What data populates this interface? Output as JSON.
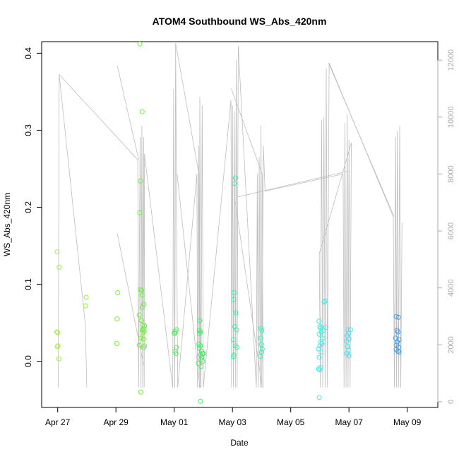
{
  "chart_data": {
    "type": "scatter",
    "title": "ATOM4 Southbound WS_Abs_420nm",
    "xlabel": "Date",
    "ylabel": "WS_Abs_420nm",
    "x_ticks": [
      "Apr 27",
      "Apr 29",
      "May 01",
      "May 03",
      "May 05",
      "May 07",
      "May 09"
    ],
    "x_tick_days": [
      0,
      2,
      4,
      6,
      8,
      10,
      12
    ],
    "xlim_days": [
      -0.55,
      13.05
    ],
    "ylim": [
      -0.06,
      0.415
    ],
    "y_ticks": [
      0.0,
      0.1,
      0.2,
      0.3,
      0.4
    ],
    "y_tick_labels": [
      "0.0",
      "0.1",
      "0.2",
      "0.3",
      "0.4"
    ],
    "secondary_ylim": [
      -200,
      12650
    ],
    "secondary_y_ticks": [
      0,
      2000,
      4000,
      6000,
      8000,
      10000,
      12000
    ],
    "secondary_y_tick_labels": [
      "0",
      "2000",
      "4000",
      "6000",
      "8000",
      "10000",
      "12000"
    ],
    "colors": {
      "axis": "#000000",
      "secondary_axis": "#a9a9a9",
      "trace": "#bdbdbd"
    },
    "series": [
      {
        "color": "#a0f03a",
        "points": [
          [
            -0.02,
            0.142
          ],
          [
            -0.03,
            0.038
          ],
          [
            0.0,
            0.037
          ],
          [
            0.01,
            0.02
          ],
          [
            -0.02,
            0.019
          ],
          [
            0.05,
            0.122
          ],
          [
            0.04,
            0.003
          ]
        ]
      },
      {
        "color": "#8ff03a",
        "points": [
          [
            0.98,
            0.083
          ],
          [
            0.95,
            0.072
          ]
        ]
      },
      {
        "color": "#7df03a",
        "points": [
          [
            2.06,
            0.089
          ],
          [
            2.04,
            0.055
          ],
          [
            2.03,
            0.023
          ]
        ]
      },
      {
        "color": "#6cf03a",
        "points": [
          [
            2.82,
            0.412
          ],
          [
            2.9,
            0.324
          ],
          [
            2.84,
            0.234
          ],
          [
            2.82,
            0.193
          ],
          [
            2.84,
            0.093
          ],
          [
            2.88,
            0.092
          ],
          [
            2.9,
            0.086
          ],
          [
            2.8,
            0.06
          ],
          [
            2.87,
            0.053
          ],
          [
            2.96,
            0.074
          ],
          [
            2.9,
            0.07
          ],
          [
            2.92,
            0.047
          ],
          [
            2.98,
            0.046
          ],
          [
            2.95,
            0.042
          ],
          [
            2.9,
            0.04
          ],
          [
            2.97,
            0.039
          ],
          [
            2.93,
            0.037
          ],
          [
            2.86,
            0.03
          ],
          [
            2.95,
            0.029
          ],
          [
            2.8,
            0.021
          ],
          [
            2.98,
            0.02
          ],
          [
            2.95,
            0.018
          ],
          [
            2.85,
            -0.04
          ]
        ]
      },
      {
        "color": "#4cf05a",
        "points": [
          [
            4.08,
            0.041
          ],
          [
            4.03,
            0.039
          ],
          [
            4.0,
            0.037
          ],
          [
            4.02,
            0.036
          ],
          [
            4.07,
            0.018
          ],
          [
            4.03,
            0.013
          ],
          [
            4.06,
            0.01
          ]
        ]
      },
      {
        "color": "#3cf062",
        "points": [
          [
            4.88,
            0.053
          ],
          [
            4.86,
            0.04
          ],
          [
            4.9,
            0.038
          ],
          [
            4.87,
            0.036
          ],
          [
            4.85,
            0.022
          ],
          [
            4.9,
            0.02
          ],
          [
            4.86,
            0.017
          ],
          [
            4.94,
            0.013
          ],
          [
            4.97,
            0.01
          ],
          [
            5.0,
            0.01
          ],
          [
            4.9,
            0.008
          ],
          [
            4.95,
            0.005
          ],
          [
            4.92,
            0.002
          ],
          [
            4.98,
            0.0
          ],
          [
            4.83,
            -0.003
          ],
          [
            4.92,
            -0.007
          ],
          [
            4.9,
            -0.052
          ]
        ]
      },
      {
        "color": "#3cf0a0",
        "points": [
          [
            6.1,
            0.238
          ],
          [
            6.08,
            0.231
          ],
          [
            6.05,
            0.089
          ],
          [
            6.04,
            0.08
          ],
          [
            6.12,
            0.063
          ],
          [
            6.08,
            0.045
          ],
          [
            6.14,
            0.041
          ],
          [
            6.03,
            0.028
          ],
          [
            6.1,
            0.02
          ],
          [
            6.15,
            0.018
          ],
          [
            6.05,
            0.008
          ],
          [
            6.03,
            0.006
          ]
        ]
      },
      {
        "color": "#3cf0b4",
        "points": [
          [
            6.98,
            0.043
          ],
          [
            7.01,
            0.04
          ],
          [
            6.97,
            0.03
          ],
          [
            6.99,
            0.022
          ],
          [
            7.02,
            0.016
          ],
          [
            7.0,
            0.012
          ],
          [
            6.96,
            0.006
          ]
        ]
      },
      {
        "color": "#3cf0e6",
        "points": [
          [
            8.97,
            0.052
          ],
          [
            9.0,
            0.045
          ],
          [
            9.02,
            0.043
          ],
          [
            9.05,
            0.038
          ],
          [
            8.98,
            0.035
          ],
          [
            9.1,
            0.03
          ],
          [
            9.03,
            0.025
          ],
          [
            9.07,
            0.023
          ],
          [
            9.0,
            0.02
          ],
          [
            8.95,
            0.016
          ],
          [
            9.04,
            0.012
          ],
          [
            8.98,
            0.005
          ],
          [
            9.02,
            -0.008
          ],
          [
            8.96,
            -0.01
          ],
          [
            9.0,
            -0.011
          ],
          [
            8.98,
            -0.047
          ],
          [
            9.15,
            0.077
          ],
          [
            9.18,
            0.078
          ],
          [
            9.2,
            0.044
          ],
          [
            9.12,
            0.04
          ]
        ]
      },
      {
        "color": "#3ce6f0",
        "points": [
          [
            9.96,
            0.041
          ],
          [
            9.98,
            0.036
          ],
          [
            9.94,
            0.033
          ],
          [
            10.0,
            0.029
          ],
          [
            9.92,
            0.026
          ],
          [
            9.95,
            0.019
          ],
          [
            9.97,
            0.014
          ],
          [
            9.93,
            0.01
          ],
          [
            9.99,
            0.007
          ],
          [
            10.05,
            0.041
          ]
        ]
      },
      {
        "color": "#3ca0f0",
        "points": [
          [
            11.62,
            0.058
          ],
          [
            11.7,
            0.057
          ],
          [
            11.65,
            0.04
          ],
          [
            11.68,
            0.038
          ],
          [
            11.6,
            0.03
          ],
          [
            11.72,
            0.028
          ],
          [
            11.66,
            0.025
          ],
          [
            11.64,
            0.021
          ],
          [
            11.7,
            0.018
          ],
          [
            11.62,
            0.015
          ],
          [
            11.68,
            0.013
          ],
          [
            11.72,
            0.012
          ]
        ]
      }
    ],
    "secondary_trace": [
      [
        0.02,
        500
      ],
      [
        0.05,
        11500
      ],
      [
        2.75,
        8500
      ],
      [
        2.78,
        500
      ],
      [
        2.83,
        9300
      ],
      [
        2.86,
        500
      ],
      [
        2.89,
        9700
      ],
      [
        2.92,
        500
      ],
      [
        2.95,
        9300
      ],
      [
        2.97,
        500
      ],
      [
        2.98,
        8700
      ],
      [
        3.95,
        500
      ],
      [
        3.98,
        11000
      ],
      [
        4.02,
        500
      ],
      [
        4.05,
        12600
      ],
      [
        4.12,
        500
      ],
      [
        4.78,
        8000
      ],
      [
        4.8,
        500
      ],
      [
        4.84,
        9000
      ],
      [
        4.86,
        500
      ],
      [
        4.88,
        10700
      ],
      [
        4.92,
        500
      ],
      [
        4.96,
        10400
      ],
      [
        5.0,
        500
      ],
      [
        5.95,
        10600
      ],
      [
        5.97,
        500
      ],
      [
        6.0,
        10400
      ],
      [
        6.03,
        500
      ],
      [
        6.06,
        10200
      ],
      [
        6.1,
        500
      ],
      [
        6.13,
        12000
      ],
      [
        6.16,
        500
      ],
      [
        6.2,
        12500
      ],
      [
        6.82,
        500
      ],
      [
        6.85,
        8000
      ],
      [
        6.88,
        500
      ],
      [
        6.92,
        8600
      ],
      [
        6.95,
        500
      ],
      [
        6.98,
        9700
      ],
      [
        7.01,
        500
      ],
      [
        7.06,
        9000
      ],
      [
        7.12,
        7400
      ],
      [
        9.8,
        8000
      ],
      [
        9.83,
        500
      ],
      [
        9.86,
        9800
      ],
      [
        9.9,
        500
      ],
      [
        9.94,
        10100
      ],
      [
        9.97,
        500
      ],
      [
        10.0,
        9200
      ],
      [
        10.04,
        500
      ],
      [
        10.08,
        9100
      ],
      [
        8.98,
        5200
      ],
      [
        9.02,
        500
      ],
      [
        9.06,
        9900
      ],
      [
        9.1,
        500
      ],
      [
        9.14,
        10000
      ],
      [
        9.18,
        500
      ],
      [
        9.22,
        11700
      ],
      [
        9.26,
        500
      ],
      [
        9.32,
        11900
      ],
      [
        11.52,
        6500
      ],
      [
        11.56,
        500
      ],
      [
        11.6,
        9300
      ],
      [
        11.63,
        500
      ],
      [
        11.66,
        9500
      ],
      [
        11.7,
        500
      ],
      [
        11.74,
        9700
      ],
      [
        11.78,
        500
      ],
      [
        11.82,
        6300
      ]
    ],
    "secondary_lines": [
      [
        [
          0.05,
          11500
        ],
        [
          0.95,
          2700
        ],
        [
          1.0,
          500
        ]
      ],
      [
        [
          2.05,
          11800
        ],
        [
          2.78,
          8500
        ]
      ],
      [
        [
          4.05,
          12600
        ],
        [
          4.85,
          8000
        ],
        [
          4.9,
          500
        ]
      ],
      [
        [
          5.96,
          11000
        ],
        [
          7.02,
          8000
        ],
        [
          7.05,
          500
        ]
      ],
      [
        [
          6.2,
          7200
        ],
        [
          9.96,
          8100
        ]
      ],
      [
        [
          9.3,
          11900
        ],
        [
          11.55,
          6500
        ]
      ],
      [
        [
          2.05,
          5900
        ],
        [
          2.95,
          1300
        ]
      ],
      [
        [
          4.1,
          8000
        ],
        [
          4.88,
          500
        ]
      ],
      [
        [
          6.1,
          7000
        ],
        [
          7.02,
          500
        ]
      ]
    ],
    "grid": false,
    "legend": "none"
  }
}
